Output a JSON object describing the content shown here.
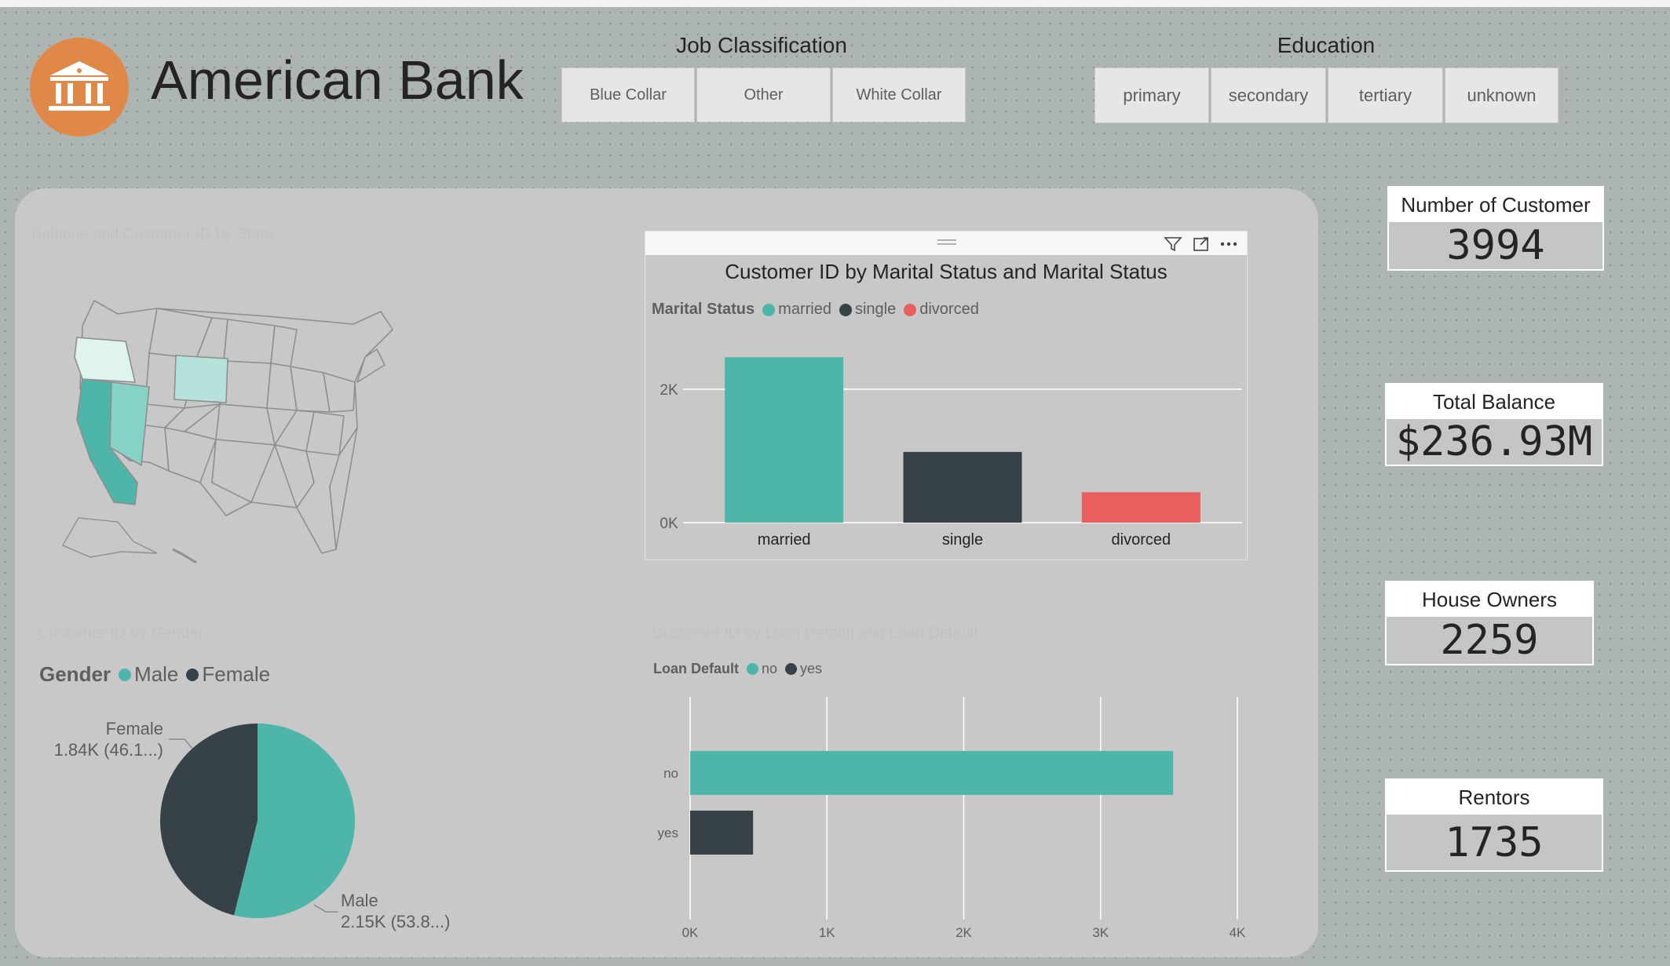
{
  "app": {
    "title": "American Bank"
  },
  "colors": {
    "accent_teal": "#4db6a8",
    "dark": "#374248",
    "red": "#e85f5f",
    "logo_orange": "#e08848"
  },
  "job_slicer": {
    "title": "Job Classification",
    "options": [
      "Blue Collar",
      "Other",
      "White Collar"
    ]
  },
  "education_slicer": {
    "title": "Education",
    "options": [
      "primary",
      "secondary",
      "tertiary",
      "unknown"
    ]
  },
  "map_visual": {
    "title": "Balance and Customer ID by State"
  },
  "gender_visual": {
    "title": "Customer ID by Gender",
    "legend_label": "Gender",
    "labels": {
      "female_name": "Female",
      "female_value": "1.84K (46.1...)",
      "male_name": "Male",
      "male_value": "2.15K (53.8...)"
    }
  },
  "loan_visual": {
    "title": "Customer ID by Loan Default and Loan Default",
    "legend_label": "Loan Default"
  },
  "marital_visual": {
    "legend_label": "Marital Status"
  },
  "cards": {
    "customers": {
      "label": "Number of Customer",
      "value": "3994"
    },
    "balance": {
      "label": "Total Balance",
      "value": "$236.93M"
    },
    "owners": {
      "label": "House Owners",
      "value": "2259"
    },
    "rentors": {
      "label": "Rentors",
      "value": "1735"
    }
  },
  "icons": {
    "logo": "bank-icon",
    "filter": "filter-icon",
    "focus": "focus-mode-icon",
    "more": "more-options-icon",
    "drag": "drag-handle-icon"
  },
  "chart_data": [
    {
      "type": "bar",
      "title": "Customer ID by Marital Status and Marital Status",
      "categories": [
        "married",
        "single",
        "divorced"
      ],
      "values": [
        2480,
        1060,
        455
      ],
      "colors": [
        "#4db6a8",
        "#374248",
        "#e85f5f"
      ],
      "legend": [
        "married",
        "single",
        "divorced"
      ],
      "legend_position": "top-left",
      "yticks": [
        "0K",
        "2K"
      ],
      "ylim": [
        0,
        2600
      ],
      "grid": true
    },
    {
      "type": "bar",
      "orientation": "horizontal",
      "title": "Customer ID by Loan Default and Loan Default",
      "categories": [
        "no",
        "yes"
      ],
      "values": [
        3530,
        460
      ],
      "colors": [
        "#4db6a8",
        "#374248"
      ],
      "legend": [
        "no",
        "yes"
      ],
      "legend_position": "top-left",
      "xticks": [
        "0K",
        "1K",
        "2K",
        "3K",
        "4K"
      ],
      "xlim": [
        0,
        4000
      ],
      "grid": true
    },
    {
      "type": "pie",
      "title": "Customer ID by Gender",
      "categories": [
        "Male",
        "Female"
      ],
      "values": [
        2150,
        1840
      ],
      "colors": [
        "#4db6a8",
        "#374248"
      ]
    }
  ]
}
